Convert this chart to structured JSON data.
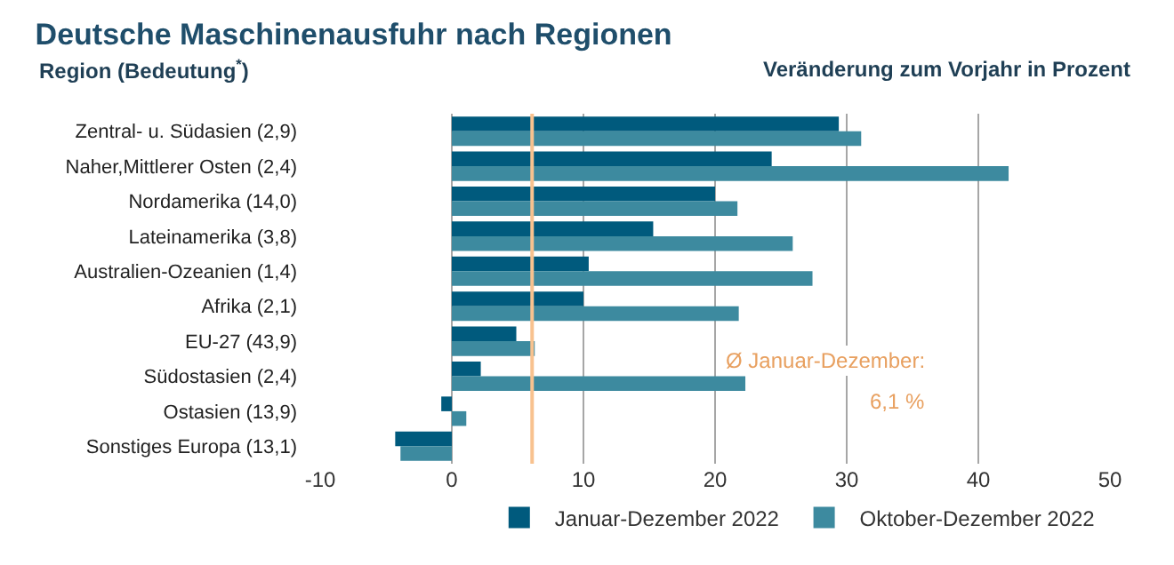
{
  "chart_data": {
    "type": "bar",
    "orientation": "horizontal",
    "title": "Deutsche Maschinenausfuhr nach Regionen",
    "subtitle": "Region (Bedeutung$^{*}$)",
    "xlabel": "Veränderung zum Vorjahr in Prozent",
    "categories": [
      "Zentral- u. Südasien (2,9)",
      "Naher,Mittlerer Osten (2,4)",
      "Nordamerika (14,0)",
      "Lateinamerika (3,8)",
      "Australien-Ozeanien (1,4)",
      "Afrika (2,1)",
      "EU-27 (43,9)",
      "Südostasien (2,4)",
      "Ostasien (13,9)",
      "Sonstiges Europa (13,1)"
    ],
    "series": [
      {
        "name": "Januar-Dezember 2022",
        "color": "#005a7d",
        "values": [
          29.4,
          24.3,
          20.0,
          15.3,
          10.4,
          10.0,
          4.9,
          2.2,
          -0.8,
          -4.3
        ]
      },
      {
        "name": "Oktober-Dezember 2022",
        "color": "#3d8a9f",
        "values": [
          31.1,
          42.3,
          21.7,
          25.9,
          27.4,
          21.8,
          6.3,
          22.3,
          1.1,
          -3.9
        ]
      }
    ],
    "xlim": [
      -10,
      50
    ],
    "xticks": [
      -10,
      0,
      10,
      20,
      30,
      40,
      50
    ],
    "grid": "x",
    "legend": "bottom",
    "ref_lines": [
      {
        "axis": "x",
        "value": 6.1,
        "color": "#f8c28f"
      }
    ],
    "annotations": [
      "Ø Januar-Dezember:",
      "6,1 %"
    ]
  }
}
